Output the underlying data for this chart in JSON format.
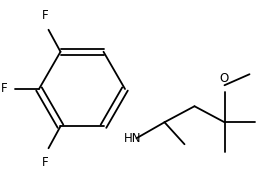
{
  "background_color": "#ffffff",
  "line_color": "#000000",
  "line_width": 1.3,
  "text_color": "#000000",
  "font_size": 8.5,
  "figure_width": 2.7,
  "figure_height": 1.84,
  "dpi": 100,
  "xlim": [
    0,
    270
  ],
  "ylim": [
    0,
    184
  ]
}
